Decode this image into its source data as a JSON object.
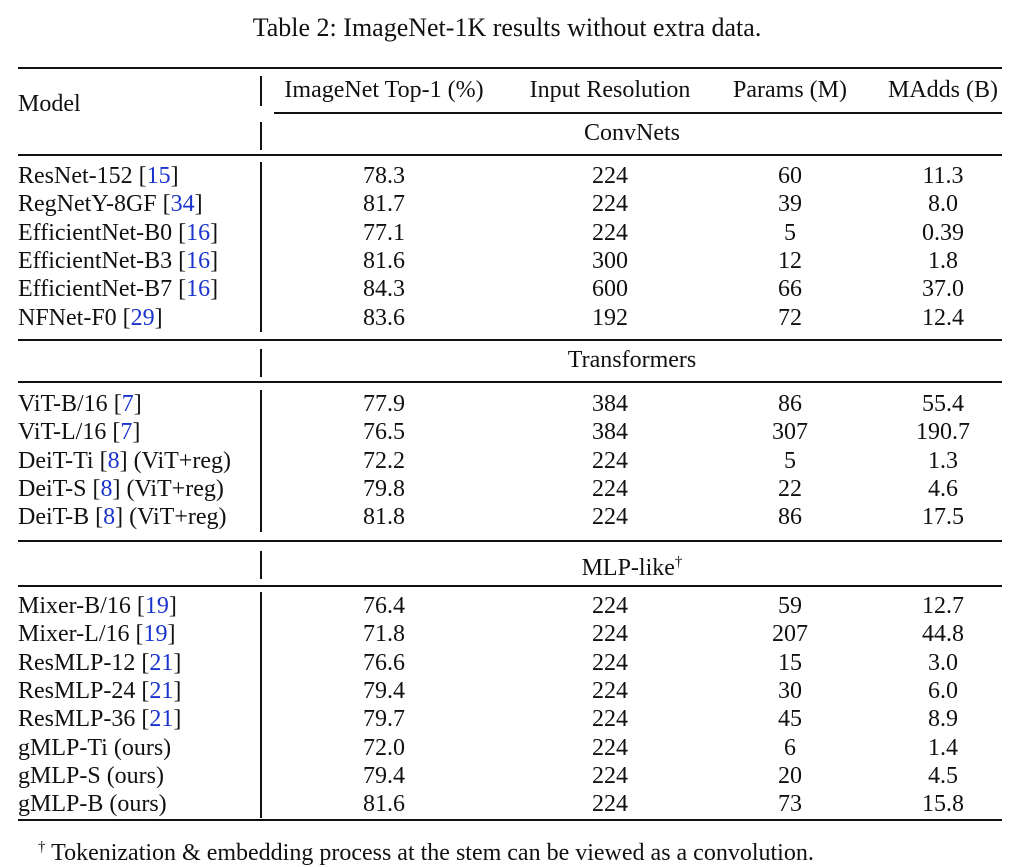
{
  "caption": "Table 2: ImageNet-1K results without extra data.",
  "columns": {
    "model": "Model",
    "top1": "ImageNet Top-1 (%)",
    "res": "Input Resolution",
    "params": "Params (M)",
    "madds": "MAdds (B)"
  },
  "groups": [
    {
      "name": "ConvNets",
      "rows": [
        {
          "name": "ResNet-152",
          "cite": "15",
          "suffix": "",
          "top1": "78.3",
          "res": "224",
          "params": "60",
          "madds": "11.3"
        },
        {
          "name": "RegNetY-8GF",
          "cite": "34",
          "suffix": "",
          "top1": "81.7",
          "res": "224",
          "params": "39",
          "madds": "8.0"
        },
        {
          "name": "EfficientNet-B0",
          "cite": "16",
          "suffix": "",
          "top1": "77.1",
          "res": "224",
          "params": "5",
          "madds": "0.39"
        },
        {
          "name": "EfficientNet-B3",
          "cite": "16",
          "suffix": "",
          "top1": "81.6",
          "res": "300",
          "params": "12",
          "madds": "1.8"
        },
        {
          "name": "EfficientNet-B7",
          "cite": "16",
          "suffix": "",
          "top1": "84.3",
          "res": "600",
          "params": "66",
          "madds": "37.0"
        },
        {
          "name": "NFNet-F0",
          "cite": "29",
          "suffix": "",
          "top1": "83.6",
          "res": "192",
          "params": "72",
          "madds": "12.4"
        }
      ]
    },
    {
      "name": "Transformers",
      "rows": [
        {
          "name": "ViT-B/16",
          "cite": "7",
          "suffix": "",
          "top1": "77.9",
          "res": "384",
          "params": "86",
          "madds": "55.4"
        },
        {
          "name": "ViT-L/16",
          "cite": "7",
          "suffix": "",
          "top1": "76.5",
          "res": "384",
          "params": "307",
          "madds": "190.7"
        },
        {
          "name": "DeiT-Ti",
          "cite": "8",
          "suffix": "(ViT+reg)",
          "top1": "72.2",
          "res": "224",
          "params": "5",
          "madds": "1.3"
        },
        {
          "name": "DeiT-S",
          "cite": "8",
          "suffix": "(ViT+reg)",
          "top1": "79.8",
          "res": "224",
          "params": "22",
          "madds": "4.6"
        },
        {
          "name": "DeiT-B",
          "cite": "8",
          "suffix": "(ViT+reg)",
          "top1": "81.8",
          "res": "224",
          "params": "86",
          "madds": "17.5"
        }
      ]
    },
    {
      "name": "MLP-like",
      "mark": "†",
      "rows": [
        {
          "name": "Mixer-B/16",
          "cite": "19",
          "suffix": "",
          "top1": "76.4",
          "res": "224",
          "params": "59",
          "madds": "12.7"
        },
        {
          "name": "Mixer-L/16",
          "cite": "19",
          "suffix": "",
          "top1": "71.8",
          "res": "224",
          "params": "207",
          "madds": "44.8"
        },
        {
          "name": "ResMLP-12",
          "cite": "21",
          "suffix": "",
          "top1": "76.6",
          "res": "224",
          "params": "15",
          "madds": "3.0"
        },
        {
          "name": "ResMLP-24",
          "cite": "21",
          "suffix": "",
          "top1": "79.4",
          "res": "224",
          "params": "30",
          "madds": "6.0"
        },
        {
          "name": "ResMLP-36",
          "cite": "21",
          "suffix": "",
          "top1": "79.7",
          "res": "224",
          "params": "45",
          "madds": "8.9"
        },
        {
          "name": "gMLP-Ti",
          "cite": "",
          "suffix": "(ours)",
          "top1": "72.0",
          "res": "224",
          "params": "6",
          "madds": "1.4"
        },
        {
          "name": "gMLP-S",
          "cite": "",
          "suffix": "(ours)",
          "top1": "79.4",
          "res": "224",
          "params": "20",
          "madds": "4.5"
        },
        {
          "name": "gMLP-B",
          "cite": "",
          "suffix": "(ours)",
          "top1": "81.6",
          "res": "224",
          "params": "73",
          "madds": "15.8"
        }
      ]
    }
  ],
  "footnote": {
    "mark": "†",
    "text": "Tokenization & embedding process at the stem can be viewed as a convolution."
  }
}
